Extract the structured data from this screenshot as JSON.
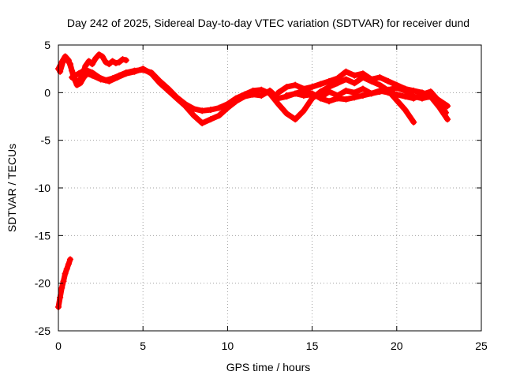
{
  "chart_data": {
    "type": "scatter",
    "title": "Day 242 of 2025, Sidereal Day-to-day VTEC variation (SDTVAR) for receiver dund",
    "xlabel": "GPS time / hours",
    "ylabel": "SDTVAR / TECUs",
    "xlim": [
      0,
      25
    ],
    "ylim": [
      -25,
      5
    ],
    "xticks": [
      0,
      5,
      10,
      15,
      20,
      25
    ],
    "yticks": [
      -25,
      -20,
      -15,
      -10,
      -5,
      0,
      5
    ],
    "grid": true,
    "marker_color": "#ff0000",
    "series": [
      {
        "name": "trace-1",
        "x": [
          0.0,
          0.2,
          0.4,
          0.6,
          0.8,
          1.0,
          1.2,
          1.4,
          1.6,
          1.8,
          2.0,
          2.2,
          2.4,
          2.6,
          2.8,
          3.0,
          3.2,
          3.4,
          3.6,
          3.8,
          4.0
        ],
        "y": [
          2.5,
          3.2,
          3.8,
          3.4,
          2.3,
          1.4,
          1.0,
          1.8,
          2.8,
          3.3,
          3.0,
          3.6,
          4.0,
          3.8,
          3.2,
          3.0,
          3.3,
          3.1,
          3.2,
          3.5,
          3.4
        ]
      },
      {
        "name": "trace-2",
        "x": [
          0.1,
          0.3,
          0.5,
          0.7,
          0.9,
          1.1,
          1.3,
          1.5,
          1.7,
          2.0,
          2.5,
          3.0,
          3.5,
          4.0,
          4.5,
          5.0,
          5.5,
          6.0,
          6.5,
          7.0,
          7.5,
          8.0,
          8.5,
          9.0,
          9.5,
          10.0,
          10.5,
          11.0,
          11.5,
          12.0,
          12.5,
          13.0,
          13.5,
          14.0,
          14.5,
          15.0,
          15.5,
          16.0,
          16.5,
          17.0,
          17.5,
          18.0,
          18.5,
          19.0,
          19.5,
          20.0,
          20.5,
          21.0,
          21.5,
          22.0,
          22.5,
          22.9
        ],
        "y": [
          2.2,
          3.4,
          3.5,
          3.0,
          1.6,
          0.8,
          1.0,
          1.6,
          2.0,
          1.8,
          1.4,
          1.2,
          1.6,
          2.0,
          2.2,
          2.5,
          2.0,
          1.0,
          0.2,
          -0.6,
          -1.4,
          -2.4,
          -3.2,
          -2.8,
          -2.4,
          -1.6,
          -0.9,
          -0.4,
          -0.2,
          -0.3,
          0.2,
          -0.6,
          -0.4,
          -0.1,
          -0.3,
          -0.2,
          -0.5,
          0.1,
          -0.3,
          0.2,
          0.0,
          0.4,
          -0.1,
          0.2,
          0.0,
          -0.2,
          -0.4,
          -0.6,
          -0.2,
          0.1,
          -0.9,
          -2.1
        ]
      },
      {
        "name": "trace-3",
        "x": [
          0.8,
          1.2,
          1.6,
          2.0,
          2.4,
          2.8,
          3.2,
          3.6,
          4.0,
          4.5,
          5.0,
          5.5,
          6.0,
          6.5,
          7.0,
          7.5,
          8.0,
          8.5,
          9.0,
          9.5,
          10.0,
          10.5,
          11.0,
          11.5,
          12.0,
          12.5,
          13.0,
          13.5,
          14.0,
          14.5,
          15.0,
          15.5,
          16.0,
          16.5,
          17.0,
          17.5,
          18.0,
          18.5,
          19.0,
          19.5,
          20.0,
          20.5,
          21.0
        ],
        "y": [
          1.6,
          2.0,
          2.4,
          2.1,
          1.6,
          1.3,
          1.5,
          1.8,
          2.1,
          2.3,
          2.4,
          2.1,
          1.2,
          0.4,
          -0.5,
          -1.2,
          -1.7,
          -1.9,
          -1.8,
          -1.6,
          -1.2,
          -0.6,
          -0.2,
          0.2,
          0.3,
          -0.1,
          -1.2,
          -2.2,
          -2.8,
          -1.9,
          -0.6,
          0.1,
          0.6,
          1.0,
          1.4,
          1.0,
          1.6,
          1.2,
          0.8,
          0.2,
          -0.8,
          -1.8,
          -3.1
        ]
      },
      {
        "name": "trace-4",
        "x": [
          13.0,
          13.5,
          14.0,
          14.5,
          15.0,
          15.5,
          16.0,
          16.5,
          17.0,
          17.5,
          18.0,
          18.5,
          19.0,
          19.5,
          20.0,
          20.5,
          21.0,
          21.5,
          22.0,
          22.5,
          23.0
        ],
        "y": [
          0.0,
          0.6,
          0.8,
          0.4,
          0.6,
          0.9,
          1.2,
          1.5,
          2.2,
          1.8,
          2.0,
          1.4,
          1.6,
          1.2,
          0.8,
          0.4,
          0.2,
          0.0,
          -0.3,
          -0.8,
          -1.4
        ]
      },
      {
        "name": "trace-5",
        "x": [
          13.5,
          14.0,
          14.5,
          15.0,
          15.5,
          16.0,
          16.5,
          17.0,
          17.5,
          18.0,
          18.5,
          19.0,
          19.5,
          20.0,
          20.5,
          21.0,
          21.5,
          22.0,
          22.5,
          23.0
        ],
        "y": [
          -0.3,
          -0.1,
          0.2,
          -0.1,
          -0.6,
          -0.9,
          -0.6,
          -0.7,
          -0.5,
          -0.3,
          -0.1,
          0.1,
          0.3,
          0.5,
          0.2,
          -0.4,
          -0.6,
          -0.4,
          -1.5,
          -2.8
        ]
      },
      {
        "name": "trace-6",
        "x": [
          0.0,
          0.1,
          0.2,
          0.3,
          0.4,
          0.5,
          0.6,
          0.7
        ],
        "y": [
          -22.5,
          -21.5,
          -20.5,
          -19.8,
          -19.0,
          -18.5,
          -18.0,
          -17.5
        ]
      }
    ]
  }
}
